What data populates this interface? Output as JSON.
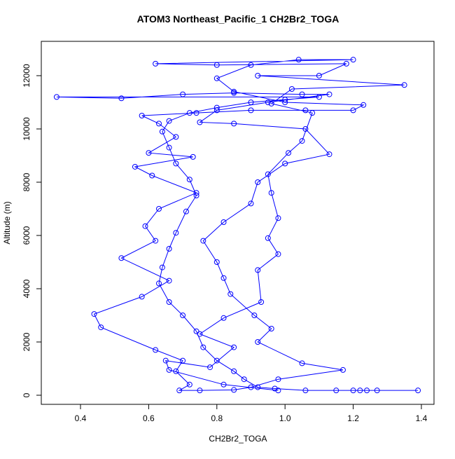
{
  "chart_data": {
    "type": "line",
    "title": "ATOM3 Northeast_Pacific_1 CH2Br2_TOGA",
    "xlabel": "CH2Br2_TOGA",
    "ylabel": "Altitude (m)",
    "color": "#0000ff",
    "markers": "open-circle",
    "xlim": [
      0.285,
      1.437
    ],
    "ylim": [
      -342,
      13289
    ],
    "xticks": [
      0.4,
      0.6,
      0.8,
      {
        "value": 1.0,
        "label": "1.0"
      },
      1.2,
      1.4
    ],
    "yticks": [
      0,
      2000,
      4000,
      6000,
      8000,
      10000,
      12000
    ],
    "x": [
      1.39,
      1.27,
      1.24,
      1.22,
      1.2,
      1.15,
      1.06,
      0.97,
      0.92,
      0.88,
      0.85,
      0.8,
      0.76,
      0.74,
      0.7,
      0.66,
      0.63,
      0.64,
      0.66,
      0.68,
      0.71,
      0.74,
      0.72,
      0.68,
      0.66,
      0.64,
      0.66,
      0.72,
      0.8,
      0.9,
      1.0,
      1.1,
      0.33,
      0.52,
      0.7,
      0.85,
      1.05,
      1.13,
      0.95,
      0.8,
      0.75,
      0.85,
      1.06,
      1.13,
      1.0,
      0.92,
      0.9,
      0.82,
      0.76,
      0.8,
      0.82,
      0.84,
      0.91,
      0.96,
      0.92,
      1.05,
      1.17,
      0.98,
      0.9,
      0.85,
      0.75,
      0.69,
      0.72,
      0.68,
      0.7,
      0.62,
      0.46,
      0.44,
      0.58,
      0.66,
      0.52,
      0.62,
      0.59,
      0.63,
      0.74,
      0.61,
      0.56,
      0.73,
      0.6,
      0.68,
      0.63,
      0.58,
      0.74,
      0.9,
      1.06,
      1.2,
      1.23,
      1.0,
      0.85,
      0.8,
      0.9,
      1.04,
      1.2,
      0.62,
      0.8,
      1.18,
      1.1,
      0.92,
      1.35,
      1.02,
      0.96,
      1.08,
      1.05,
      1.01,
      0.95,
      0.96,
      0.98,
      0.95,
      0.98,
      0.92,
      0.93,
      0.82,
      0.75,
      0.85,
      0.78,
      0.65,
      0.66,
      0.82,
      0.98
    ],
    "values": [
      180,
      180,
      180,
      180,
      180,
      180,
      180,
      250,
      300,
      600,
      900,
      1300,
      1800,
      2400,
      3000,
      3500,
      4200,
      4800,
      5500,
      6100,
      6900,
      7500,
      8100,
      8700,
      9300,
      9900,
      10300,
      10600,
      10800,
      11000,
      11100,
      11200,
      11200,
      11150,
      11300,
      11350,
      11300,
      11300,
      11000,
      10700,
      10250,
      10200,
      10000,
      9050,
      8700,
      8000,
      7200,
      6500,
      5800,
      5000,
      4400,
      3800,
      3000,
      2500,
      2000,
      1200,
      950,
      600,
      300,
      200,
      180,
      180,
      400,
      900,
      1300,
      1700,
      2550,
      3050,
      3700,
      4300,
      5150,
      5800,
      6350,
      7000,
      7600,
      8250,
      8580,
      8950,
      9100,
      9700,
      10200,
      10500,
      10600,
      10700,
      10700,
      10700,
      10900,
      11000,
      11400,
      11900,
      12400,
      12600,
      12600,
      12450,
      12400,
      12450,
      12000,
      12000,
      11650,
      11500,
      10950,
      10600,
      9550,
      9100,
      8300,
      7600,
      6650,
      5900,
      5300,
      4700,
      3500,
      2900,
      2300,
      1800,
      1050,
      1300,
      950,
      400,
      180
    ]
  }
}
